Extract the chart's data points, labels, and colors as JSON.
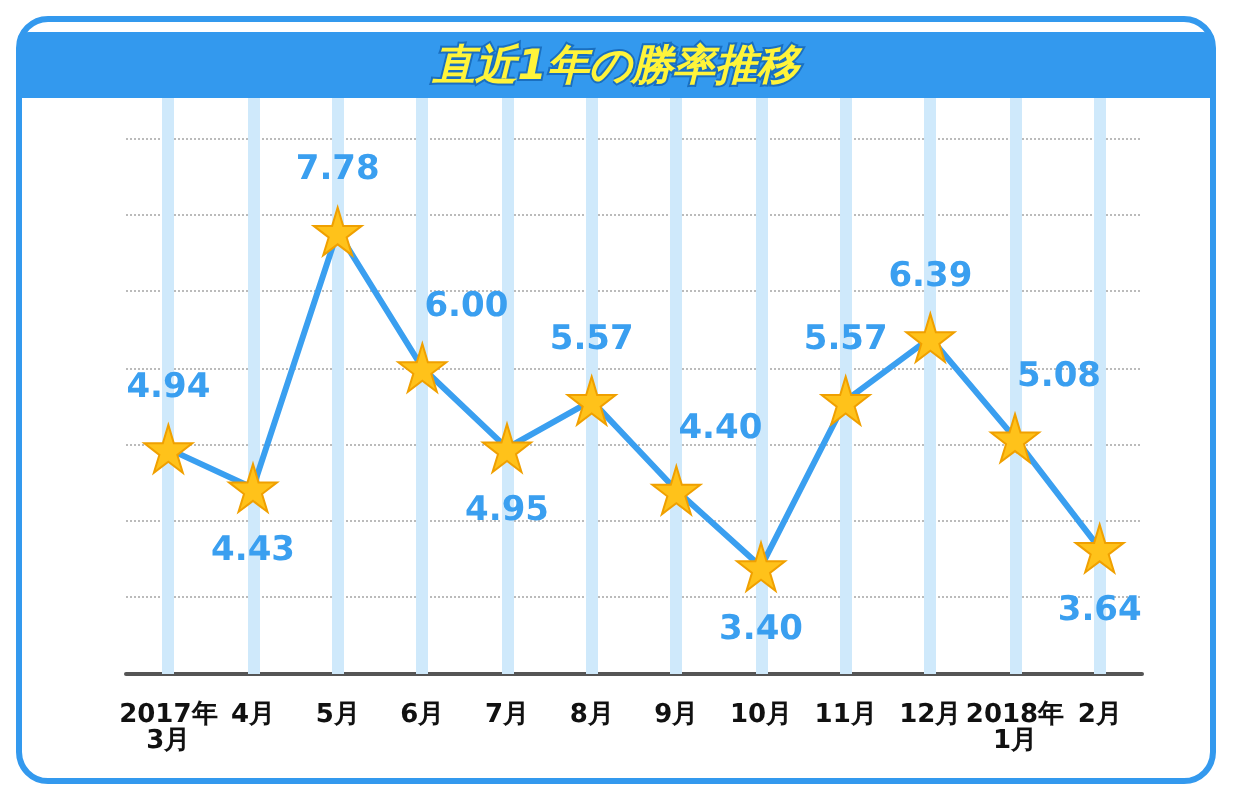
{
  "chart_data": {
    "type": "line",
    "title": "直近1年の勝率推移",
    "categories": [
      "2017年\n3月",
      "4月",
      "5月",
      "6月",
      "7月",
      "8月",
      "9月",
      "10月",
      "11月",
      "12月",
      "2018年\n1月",
      "2月"
    ],
    "series": [
      {
        "color": "#3a9ff0",
        "values": [
          4.94,
          4.43,
          7.78,
          6.0,
          4.95,
          5.57,
          4.4,
          3.4,
          5.57,
          6.39,
          5.08,
          3.64
        ],
        "value_labels": [
          "4.94",
          "4.43",
          "7.78",
          "6.00",
          "4.95",
          "5.57",
          "4.40",
          "3.40",
          "5.57",
          "6.39",
          "5.08",
          "3.64"
        ]
      }
    ],
    "marker": "star",
    "grid": true,
    "tick_labels": "x"
  }
}
